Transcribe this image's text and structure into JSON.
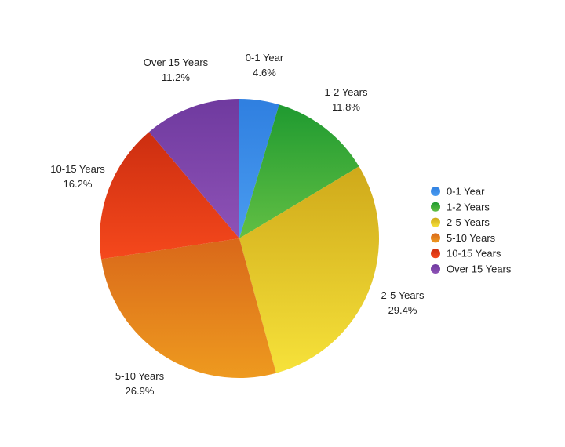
{
  "chart_data": {
    "type": "pie",
    "title": "",
    "categories": [
      "0-1 Year",
      "1-2 Years",
      "2-5 Years",
      "5-10 Years",
      "10-15 Years",
      "Over 15 Years"
    ],
    "values": [
      4.6,
      11.8,
      29.4,
      26.9,
      16.2,
      11.2
    ],
    "value_labels": [
      "4.6%",
      "11.8%",
      "29.4%",
      "26.9%",
      "16.2%",
      "11.2%"
    ],
    "colors": [
      [
        "#4a9cf0",
        "#2f7fe0"
      ],
      [
        "#62bf44",
        "#1f9a30"
      ],
      [
        "#f6e23a",
        "#cfa91a"
      ],
      [
        "#ee9a1f",
        "#d9681a"
      ],
      [
        "#f5481c",
        "#cc2e10"
      ],
      [
        "#8e52b6",
        "#6f3a9f"
      ]
    ],
    "legend_position": "right",
    "start_angle": "12 o'clock",
    "direction": "clockwise"
  }
}
